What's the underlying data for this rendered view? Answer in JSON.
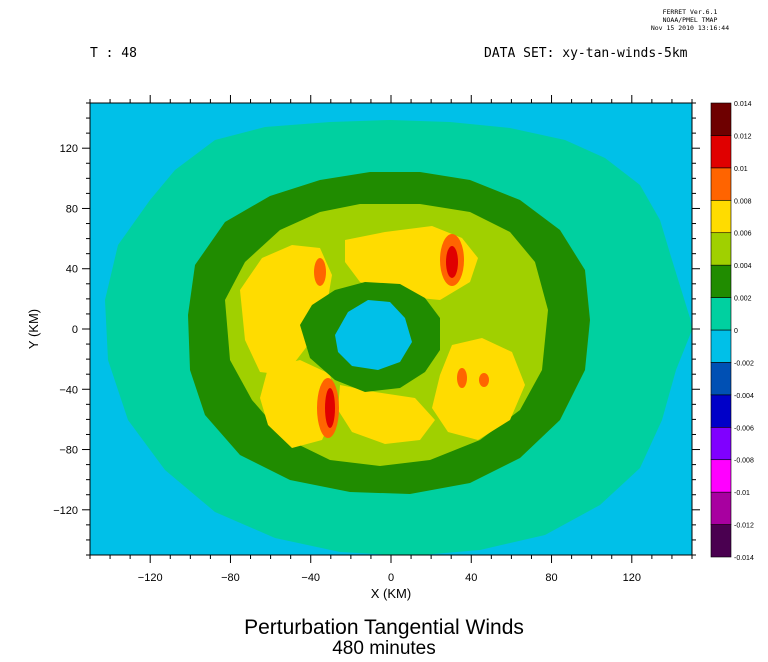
{
  "stamp": {
    "line1": "FERRET Ver.6.1",
    "line2": "NOAA/PMEL TMAP",
    "line3": "Nov 15 2010 13:16:44"
  },
  "header": {
    "time_label": "T : 48",
    "dataset_label": "DATA SET: xy-tan-winds-5km"
  },
  "chart_data": {
    "type": "heatmap",
    "title": "Perturbation Tangential Winds",
    "subtitle": "480 minutes",
    "xlabel": "X (KM)",
    "ylabel": "Y (KM)",
    "xlim": [
      -150,
      150
    ],
    "ylim": [
      -150,
      150
    ],
    "xticks": [
      -120,
      -80,
      -40,
      0,
      40,
      80,
      120
    ],
    "yticks": [
      -120,
      -80,
      -40,
      0,
      40,
      80,
      120
    ],
    "grid": false,
    "colorbar": {
      "levels": [
        "-0.014",
        "-0.012",
        "-0.01",
        "-0.008",
        "-0.006",
        "-0.004",
        "-0.002",
        "0",
        "0.002",
        "0.004",
        "0.006",
        "0.008",
        "0.01",
        "0.012",
        "0.014"
      ],
      "colors": [
        "#4a0050",
        "#a800a0",
        "#ff00ff",
        "#8000ff",
        "#0000c8",
        "#0050b4",
        "#00c0e8",
        "#00d0a0",
        "#208c00",
        "#a0d000",
        "#ffdc00",
        "#ff6400",
        "#e00000",
        "#6e0000"
      ]
    },
    "background_value": "-0.002 to 0",
    "features": [
      {
        "name": "outer halo",
        "level": "0 to 0.002",
        "center": [
          0,
          0
        ],
        "radius_km": 140
      },
      {
        "name": "outer ring",
        "level": "0.002 to 0.004",
        "center": [
          0,
          0
        ],
        "radius_km": 97
      },
      {
        "name": "inner ring",
        "level": "0.004 to 0.006",
        "center": [
          0,
          0
        ],
        "radius_km": 76
      },
      {
        "name": "yellow quadrants",
        "level": "0.006 to 0.008",
        "centers": [
          [
            -45,
            10
          ],
          [
            35,
            25
          ],
          [
            45,
            -40
          ],
          [
            -45,
            -35
          ]
        ]
      },
      {
        "name": "eye",
        "level": "-0.002 to 0",
        "center": [
          -10,
          2
        ],
        "radius_km": 22
      },
      {
        "name": "maxima",
        "level": "0.01 to 0.012",
        "centers": [
          [
            30,
            38
          ],
          [
            -30,
            -45
          ],
          [
            -35,
            30
          ],
          [
            35,
            -25
          ]
        ]
      }
    ]
  }
}
